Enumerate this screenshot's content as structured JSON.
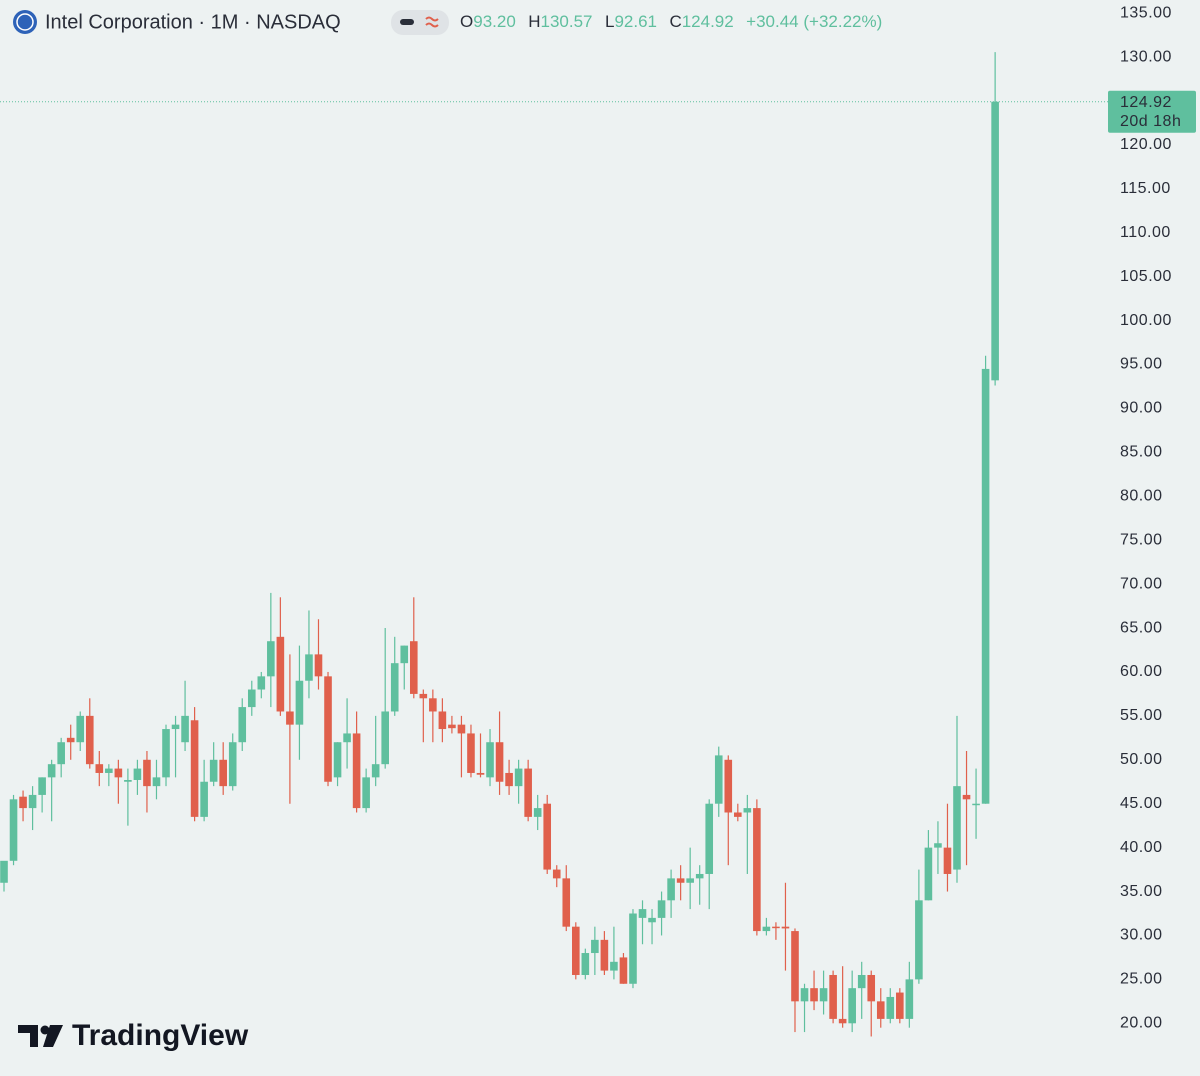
{
  "chart_data": {
    "type": "candlestick",
    "title": "Intel Corporation · 1M · NASDAQ",
    "header": {
      "o_label": "O",
      "o": "93.20",
      "h_label": "H",
      "h": "130.57",
      "l_label": "L",
      "l": "92.61",
      "c_label": "C",
      "c": "124.92",
      "change": "+30.44 (+32.22%)"
    },
    "last_price_label": "124.92",
    "countdown": "20d 18h",
    "watermark": "TradingView",
    "up_color": "#5fbf9e",
    "down_color": "#e0604c",
    "ylim": [
      14,
      136.5
    ],
    "yticks": [
      {
        "value": 20,
        "label": "20.00"
      },
      {
        "value": 25,
        "label": "25.00"
      },
      {
        "value": 30,
        "label": "30.00"
      },
      {
        "value": 35,
        "label": "35.00"
      },
      {
        "value": 40,
        "label": "40.00"
      },
      {
        "value": 45,
        "label": "45.00"
      },
      {
        "value": 50,
        "label": "50.00"
      },
      {
        "value": 55,
        "label": "55.00"
      },
      {
        "value": 60,
        "label": "60.00"
      },
      {
        "value": 65,
        "label": "65.00"
      },
      {
        "value": 70,
        "label": "70.00"
      },
      {
        "value": 75,
        "label": "75.00"
      },
      {
        "value": 80,
        "label": "80.00"
      },
      {
        "value": 85,
        "label": "85.00"
      },
      {
        "value": 90,
        "label": "90.00"
      },
      {
        "value": 95,
        "label": "95.00"
      },
      {
        "value": 100,
        "label": "100.00"
      },
      {
        "value": 105,
        "label": "105.00"
      },
      {
        "value": 110,
        "label": "110.00"
      },
      {
        "value": 115,
        "label": "115.00"
      },
      {
        "value": 120,
        "label": "120.00"
      },
      {
        "value": 130,
        "label": "130.00"
      },
      {
        "value": 135,
        "label": "135.00"
      }
    ],
    "open": [
      36,
      38.5,
      45.8,
      44.5,
      46,
      48,
      49.5,
      52.5,
      52,
      55,
      49.5,
      48.5,
      49,
      47.5,
      47.7,
      50,
      47,
      48,
      53.5,
      52,
      54.5,
      43.5,
      47.5,
      50,
      47,
      52,
      56,
      58,
      59.5,
      64,
      55.5,
      54,
      59,
      62,
      59.5,
      48,
      52,
      53,
      44.5,
      48,
      49.5,
      55.5,
      61,
      63.5,
      57.5,
      57,
      55.5,
      54,
      54,
      53,
      48.5,
      48,
      52,
      48.5,
      47,
      49,
      43.5,
      45,
      37.5,
      36.5,
      31,
      25.5,
      28,
      29.5,
      26,
      27.5,
      24.5,
      32,
      31.5,
      32,
      34,
      36.5,
      36,
      36.5,
      37,
      45,
      50,
      44,
      44,
      44.5,
      30.5,
      31,
      31,
      30.5,
      22.5,
      24,
      22.5,
      25.5,
      20.5,
      20,
      24,
      25.5,
      22.5,
      20.5,
      23.5,
      20.5,
      25,
      34,
      40,
      40,
      37.5,
      46,
      45,
      45,
      93.2
    ],
    "high": [
      38,
      46,
      46.5,
      47,
      48,
      50,
      52.5,
      54,
      55.5,
      57,
      51,
      49.5,
      50,
      49,
      50,
      51,
      50,
      54,
      55,
      59,
      56,
      50,
      52,
      52,
      53,
      57,
      59,
      60,
      69,
      68.5,
      62,
      63,
      67,
      66,
      60,
      52,
      57,
      55.5,
      49,
      55,
      65,
      64,
      63,
      68.5,
      58,
      58,
      57,
      55,
      55,
      54,
      53,
      53.5,
      55.5,
      50,
      50,
      50,
      46,
      46,
      38,
      38,
      31.5,
      28.5,
      31,
      30.5,
      31,
      28,
      33,
      34,
      33,
      35,
      37.5,
      38,
      40,
      38,
      45.5,
      51.5,
      50.5,
      45,
      46,
      45.5,
      32,
      31.5,
      36,
      30.8,
      24.5,
      26,
      26,
      26,
      26.5,
      26,
      27,
      26,
      24,
      24,
      24,
      27,
      37.5,
      42,
      43,
      45,
      55,
      51,
      49,
      96,
      130.57
    ],
    "low": [
      35,
      38,
      43,
      42,
      44,
      43,
      48,
      50,
      51,
      49,
      47,
      47,
      45,
      42.5,
      46,
      44,
      45.5,
      47,
      48,
      51,
      43,
      43,
      47,
      46,
      46.5,
      51,
      55,
      57,
      56,
      55,
      45,
      50,
      57,
      58,
      47,
      47,
      49,
      44,
      44,
      47,
      49,
      55,
      58,
      57,
      52,
      52,
      52,
      53,
      48,
      48,
      48,
      47,
      46,
      46,
      45,
      43,
      42,
      37,
      35.5,
      30.5,
      25,
      25,
      25.5,
      25.5,
      25,
      24.5,
      24,
      29,
      29,
      30,
      32,
      34,
      33,
      33.5,
      33,
      43.5,
      38,
      43,
      37,
      30,
      30,
      29.5,
      26,
      19,
      19,
      21.5,
      21,
      20,
      19.5,
      19,
      20.5,
      18.5,
      19.5,
      20,
      20,
      19.5,
      24.5,
      34,
      37,
      35,
      36,
      38,
      41,
      45,
      92.61
    ],
    "close": [
      38.5,
      45.5,
      44.5,
      46,
      48,
      49.5,
      52,
      52,
      55,
      49.5,
      48.5,
      49,
      48,
      47.7,
      49,
      47,
      48,
      53.5,
      54,
      55,
      43.5,
      47.5,
      50,
      47,
      52,
      56,
      58,
      59.5,
      63.5,
      55.5,
      54,
      59,
      62,
      59.5,
      47.5,
      52,
      53,
      44.5,
      48,
      49.5,
      55.5,
      61,
      63,
      57.5,
      57,
      55.5,
      53.5,
      53.6,
      53,
      48.5,
      48.3,
      52,
      47.5,
      47,
      49,
      43.5,
      44.5,
      37.5,
      36.5,
      31,
      25.5,
      28,
      29.5,
      26,
      27,
      24.5,
      32.5,
      33,
      32,
      34,
      36.5,
      36,
      36.5,
      37,
      45,
      50.5,
      44,
      43.5,
      44.5,
      30.5,
      31,
      30.9,
      30.8,
      22.5,
      24,
      22.5,
      24,
      20.5,
      20,
      24,
      25.5,
      22.5,
      20.5,
      23,
      20.5,
      25,
      34,
      40,
      40.5,
      37,
      47,
      45.5,
      45,
      94.5,
      124.92
    ]
  }
}
